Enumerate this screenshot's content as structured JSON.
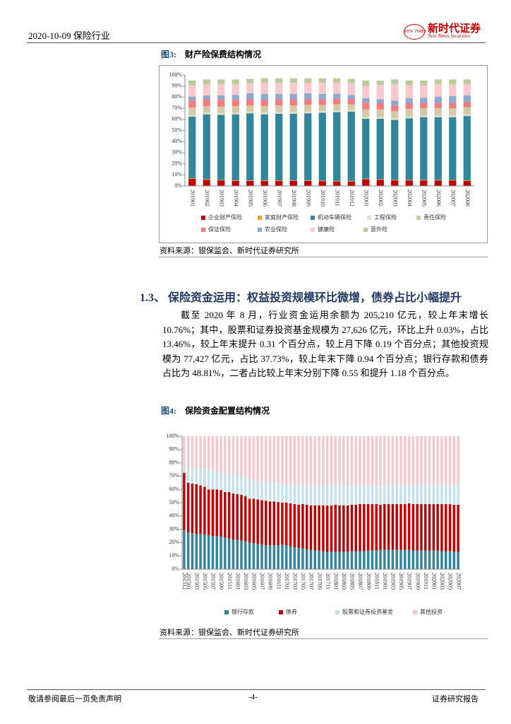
{
  "header": {
    "date_industry": "2020-10-09 保险行业",
    "logo_mark": "NEW TIMES",
    "brand_cn": "新时代证券",
    "brand_en": "New Times Securities"
  },
  "section": {
    "heading": "1.3、 保险资金运用：权益投资规模环比微增，债券占比小幅提升",
    "paragraph": "截至 2020 年 8 月，行业资金运用余额为 205,210 亿元，较上年末增长 10.76%；其中，股票和证券投资基金规模为 27,626 亿元，环比上升 0.03%，占比 13.46%，较上年末提升 0.31 个百分点，较上月下降 0.19 个百分点；其他投资规模为 77,427 亿元，占比 37.73%，较上年末下降 0.94 个百分点；银行存款和债券占比为 48.81%，二者占比较上年末分别下降 0.55 和提升 1.18 个百分点。"
  },
  "footer": {
    "left": "敬请参阅最后一页免责声明",
    "page": "-4-",
    "right": "证券研究报告"
  },
  "chart_data": [
    {
      "type": "stacked_bar",
      "figure_label": "图3:",
      "title": "财产险保费结构情况",
      "source": "资料来源：银保监会、新时代证券研究所",
      "categories": [
        "201901",
        "201902",
        "201903",
        "201904",
        "201905",
        "201906",
        "201907",
        "201908",
        "201909",
        "201910",
        "201911",
        "201912",
        "202001",
        "202002",
        "202003",
        "202004",
        "202005",
        "202006",
        "202007",
        "202008"
      ],
      "ylim": [
        0,
        100
      ],
      "yticks": [
        {
          "value": 0,
          "label": "0%"
        },
        {
          "value": 10,
          "label": "10%"
        },
        {
          "value": 20,
          "label": "20%"
        },
        {
          "value": 30,
          "label": "30%"
        },
        {
          "value": 40,
          "label": "40%"
        },
        {
          "value": 50,
          "label": "50%"
        },
        {
          "value": 60,
          "label": "60%"
        },
        {
          "value": 70,
          "label": "70%"
        },
        {
          "value": 80,
          "label": "80%"
        },
        {
          "value": 90,
          "label": "90%"
        },
        {
          "value": 100,
          "label": "100%"
        }
      ],
      "grid": false,
      "series": [
        {
          "name": "企业财产保险",
          "color": "#c00000",
          "values": [
            6.5,
            5.5,
            5,
            4.5,
            4.5,
            4.5,
            4.5,
            4.5,
            4.5,
            4.3,
            4,
            4,
            6,
            5.5,
            5,
            5,
            5,
            5,
            4.8,
            4.6
          ]
        },
        {
          "name": "家庭财产保险",
          "color": "#f0a020",
          "values": [
            0.5,
            0.5,
            0.5,
            0.5,
            0.5,
            0.5,
            0.5,
            0.5,
            0.5,
            0.5,
            0.5,
            0.5,
            0.5,
            0.5,
            0.5,
            0.5,
            0.5,
            0.5,
            0.5,
            0.5
          ]
        },
        {
          "name": "机动车辆保险",
          "color": "#31859c",
          "values": [
            55.5,
            58.5,
            58.5,
            59.5,
            60.5,
            59.5,
            60,
            60,
            60.5,
            61.2,
            62,
            62.5,
            54,
            54.5,
            54,
            55.5,
            56.5,
            56.5,
            56.7,
            57.9
          ]
        },
        {
          "name": "工程保险",
          "color": "#e6e0c8",
          "values": [
            1.5,
            1.5,
            1.5,
            1.5,
            1.5,
            1.5,
            1.5,
            1.5,
            1.5,
            1.5,
            1.5,
            1.5,
            1.5,
            1.5,
            1.5,
            1.5,
            1.5,
            1.5,
            1.5,
            1.5
          ]
        },
        {
          "name": "责任保险",
          "color": "#d3caa5",
          "values": [
            6.5,
            6,
            6,
            6,
            5.5,
            6,
            6,
            6,
            6,
            5.5,
            5.5,
            5,
            7,
            7,
            6.5,
            7,
            6.5,
            6.5,
            6.5,
            6.5
          ]
        },
        {
          "name": "保证保险",
          "color": "#f47c7c",
          "values": [
            6.5,
            6,
            6,
            5.5,
            5.5,
            5.5,
            5.5,
            5.5,
            5,
            5,
            5,
            4.5,
            6,
            5.5,
            5,
            5,
            4.5,
            4.5,
            4.5,
            4.5
          ]
        },
        {
          "name": "农业保险",
          "color": "#8fa8d0",
          "values": [
            3.5,
            3.5,
            4,
            4.5,
            5.5,
            5.5,
            5,
            5,
            5.5,
            5,
            4.5,
            4,
            4,
            3.5,
            4.5,
            4.5,
            5,
            6,
            6.5,
            6
          ]
        },
        {
          "name": "健康险",
          "color": "#f8c8cc",
          "values": [
            10,
            10,
            10,
            9.5,
            9,
            10,
            10,
            10,
            9.5,
            10,
            10,
            10.5,
            11,
            13,
            14.5,
            11.5,
            11,
            11,
            10.5,
            10
          ]
        },
        {
          "name": "意外险",
          "color": "#bccb9c",
          "values": [
            4.5,
            4.5,
            4.5,
            4.5,
            4,
            4,
            4,
            4,
            4,
            4,
            4,
            4,
            5,
            4,
            4.5,
            4.5,
            4.5,
            4.5,
            4.5,
            4.5
          ]
        }
      ]
    },
    {
      "type": "stacked_bar",
      "figure_label": "图4:",
      "title": "保险资金配置结构情况",
      "source": "资料来源：银保监会、新时代证券研究所",
      "categories": [
        "201312",
        "201501",
        null,
        "201503",
        null,
        "201505",
        null,
        "201507",
        null,
        "201509",
        null,
        "201511",
        null,
        "201601",
        null,
        "201603",
        null,
        "201605",
        null,
        "201607",
        null,
        "201609",
        null,
        "201611",
        null,
        "201701",
        null,
        "201703",
        null,
        "201705",
        null,
        "201707",
        null,
        "201709",
        null,
        "201711",
        null,
        "201801",
        null,
        "201803",
        null,
        "201805",
        null,
        "201807",
        null,
        "201809",
        null,
        "201811",
        null,
        "201901",
        null,
        "201903",
        null,
        "201905",
        null,
        "201907",
        null,
        "201909",
        null,
        "201911",
        null,
        "202001",
        null,
        "202003",
        null,
        "202005",
        null,
        "202007"
      ],
      "ylim": [
        0,
        100
      ],
      "yticks": [
        {
          "value": 0,
          "label": "0%"
        },
        {
          "value": 10,
          "label": "10%"
        },
        {
          "value": 20,
          "label": "20%"
        },
        {
          "value": 30,
          "label": "30%"
        },
        {
          "value": 40,
          "label": "40%"
        },
        {
          "value": 50,
          "label": "50%"
        },
        {
          "value": 60,
          "label": "60%"
        },
        {
          "value": 70,
          "label": "70%"
        },
        {
          "value": 80,
          "label": "80%"
        },
        {
          "value": 90,
          "label": "90%"
        },
        {
          "value": 100,
          "label": "100%"
        }
      ],
      "grid": false,
      "series": [
        {
          "name": "银行存款",
          "color": "#31849b",
          "values": [
            29.5,
            27.5,
            27,
            26.5,
            26.5,
            26,
            25.5,
            25,
            25,
            24.5,
            24,
            23,
            22,
            22,
            21.5,
            21,
            20,
            19.5,
            19,
            18.5,
            18,
            18,
            18,
            18,
            18.5,
            18,
            17,
            16.5,
            16,
            15.5,
            15,
            14.5,
            14,
            14,
            13.5,
            13,
            13,
            13,
            13,
            13,
            13,
            13.5,
            13.5,
            13.5,
            13.5,
            14,
            14,
            14,
            14.5,
            14.5,
            14.5,
            14.5,
            14.5,
            14.5,
            14.5,
            14.5,
            14,
            14,
            14,
            14,
            14,
            14,
            14,
            13.5,
            13.5,
            13.5,
            13,
            13
          ]
        },
        {
          "name": "债券",
          "color": "#c00000",
          "values": [
            43,
            37.5,
            37.5,
            37.5,
            36.5,
            36,
            34.5,
            35,
            35,
            35,
            34,
            35,
            35,
            34.5,
            34.5,
            34,
            33,
            33.5,
            33.5,
            33.5,
            33.5,
            33,
            33,
            32.5,
            31.5,
            32,
            32.5,
            32.5,
            32.5,
            33.5,
            33.5,
            33.5,
            34,
            34,
            34.5,
            35,
            35,
            35.5,
            35,
            35,
            35,
            35,
            35,
            35.5,
            35.5,
            35,
            35,
            35,
            34,
            34.5,
            34.5,
            34.5,
            34.5,
            34.5,
            34.5,
            35,
            35,
            35,
            35,
            35,
            35,
            35,
            35,
            35.5,
            35.5,
            35.5,
            35.5,
            35.5
          ]
        },
        {
          "name": "股票和证券投资基金",
          "color": "#c6e0ec",
          "values": [
            5.5,
            11,
            11.5,
            12,
            13,
            13.5,
            15,
            14,
            13,
            13.5,
            14.5,
            14,
            15,
            14.5,
            14,
            14,
            15,
            14,
            13.5,
            14,
            14,
            14.5,
            14,
            14.5,
            14,
            13.5,
            14,
            14.5,
            15,
            14.5,
            15,
            15.5,
            15.5,
            15.5,
            15.5,
            15.5,
            15.5,
            14.5,
            15,
            15,
            15,
            14.5,
            14.5,
            14,
            14,
            14,
            14,
            14,
            14.5,
            14.5,
            14.5,
            14.5,
            14.5,
            14.5,
            14.5,
            14,
            14.5,
            14.5,
            14.5,
            14.5,
            14.5,
            14.5,
            14.5,
            14.5,
            14.5,
            14.5,
            15,
            15
          ]
        },
        {
          "name": "其他投资",
          "color": "#f4c7cc",
          "values": [
            22,
            24,
            24,
            24,
            24,
            24.5,
            25,
            26,
            27,
            27,
            27.5,
            28,
            28,
            29,
            30,
            31,
            32,
            33,
            34,
            34,
            34.5,
            34.5,
            35,
            35,
            36,
            36.5,
            36.5,
            36.5,
            36.5,
            36.5,
            36.5,
            36.5,
            36.5,
            36.5,
            36.5,
            36.5,
            36.5,
            37,
            37,
            37,
            37,
            37,
            37,
            37,
            37,
            37,
            37,
            37,
            37,
            36.5,
            36.5,
            36.5,
            36.5,
            36.5,
            36.5,
            36.5,
            36.5,
            36.5,
            36.5,
            36.5,
            36.5,
            36.5,
            36.5,
            36.5,
            36.5,
            36.5,
            36.5,
            36.5
          ]
        }
      ]
    }
  ]
}
